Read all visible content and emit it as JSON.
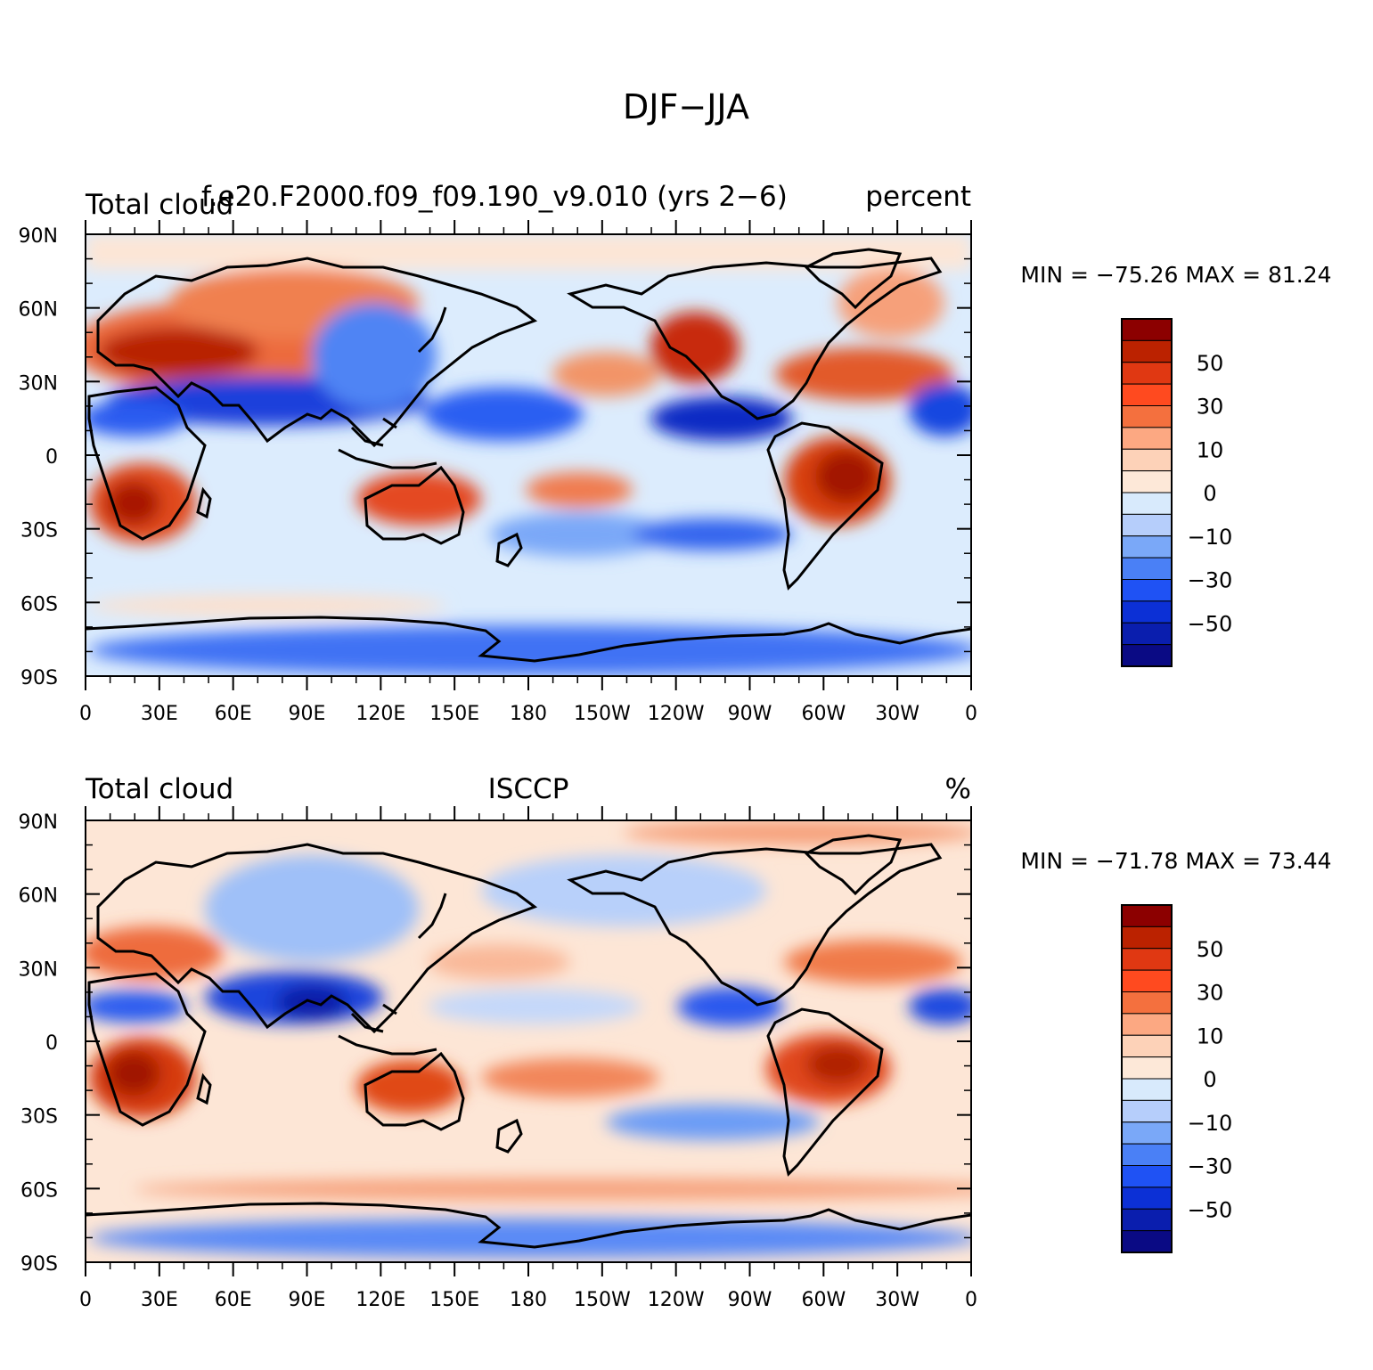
{
  "figure_title": "DJF−JJA",
  "panels": [
    {
      "left_title": "Total cloud",
      "center_title": "f.e20.F2000.f09_f09.190_v9.010 (yrs 2−6)",
      "right_title": "percent",
      "min_max_text": "MIN = −75.26 MAX =  81.24"
    },
    {
      "left_title": "Total cloud",
      "center_title": "ISCCP",
      "right_title": "%",
      "min_max_text": "MIN = −71.78 MAX =  73.44"
    }
  ],
  "lat_labels": [
    "90N",
    "60N",
    "30N",
    "0",
    "30S",
    "60S",
    "90S"
  ],
  "lon_labels": [
    "0",
    "30E",
    "60E",
    "90E",
    "120E",
    "150E",
    "180",
    "150W",
    "120W",
    "90W",
    "60W",
    "30W",
    "0"
  ],
  "colorbar": {
    "labels": [
      "50",
      "30",
      "10",
      "0",
      "−10",
      "−30",
      "−50"
    ],
    "colors_top_to_bottom": [
      "#8c0000",
      "#bb2200",
      "#e03812",
      "#ff4a1f",
      "#f4703e",
      "#fca882",
      "#fdd2b8",
      "#fde8d8",
      "#d8eafc",
      "#b6cefb",
      "#7aa8f8",
      "#4a80f6",
      "#1f52f4",
      "#0c30d6",
      "#0a1eae",
      "#0a0a84"
    ]
  },
  "colors": {
    "coast": "#000000",
    "background": "#ffffff"
  }
}
